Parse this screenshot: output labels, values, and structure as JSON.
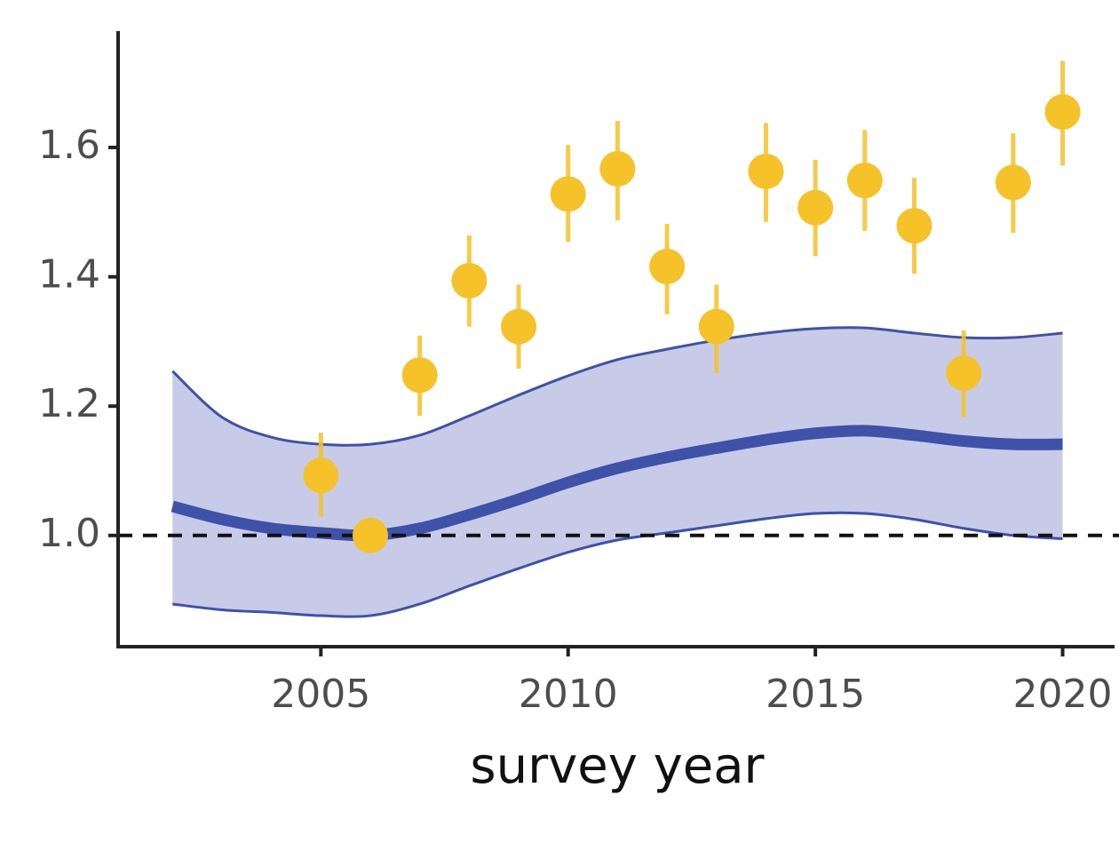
{
  "chart_data": {
    "type": "scatter",
    "x_label": "survey year",
    "xlim": [
      2000.9,
      2021.05
    ],
    "ylim": [
      0.828,
      1.78
    ],
    "xticks": [
      2005,
      2010,
      2015,
      2020
    ],
    "yticks": [
      {
        "value": 1.0,
        "label": "1.0"
      },
      1.2,
      1.4,
      1.6
    ],
    "reference_line": 1,
    "series": [
      {
        "color": "#f5c22a",
        "x": [
          2005,
          2006,
          2007,
          2008,
          2009,
          2010,
          2011,
          2012,
          2013,
          2014,
          2015,
          2016,
          2017,
          2018,
          2019,
          2020
        ],
        "values": [
          1.093,
          1.0,
          1.248,
          1.394,
          1.323,
          1.528,
          1.567,
          1.416,
          1.323,
          1.563,
          1.507,
          1.549,
          1.479,
          1.251,
          1.546,
          1.655
        ],
        "lower": [
          1.029,
          0.99,
          1.185,
          1.323,
          1.258,
          1.454,
          1.487,
          1.342,
          1.251,
          1.485,
          1.432,
          1.471,
          1.405,
          1.183,
          1.468,
          1.572
        ],
        "upper": [
          1.159,
          1.01,
          1.309,
          1.464,
          1.388,
          1.604,
          1.641,
          1.482,
          1.388,
          1.638,
          1.581,
          1.627,
          1.553,
          1.317,
          1.622,
          1.734
        ]
      }
    ],
    "trend": {
      "color": "#3f51a8",
      "band_color": "#c8cbe8",
      "x": [
        2002,
        2003,
        2004,
        2005,
        2006,
        2007,
        2008,
        2009,
        2010,
        2011,
        2012,
        2013,
        2014,
        2015,
        2016,
        2017,
        2018,
        2019,
        2020
      ],
      "values": [
        1.045,
        1.025,
        1.011,
        1.004,
        1.0,
        1.011,
        1.032,
        1.056,
        1.082,
        1.104,
        1.121,
        1.135,
        1.148,
        1.158,
        1.162,
        1.155,
        1.146,
        1.141,
        1.141
      ],
      "upper": [
        1.254,
        1.183,
        1.152,
        1.141,
        1.141,
        1.155,
        1.185,
        1.217,
        1.247,
        1.272,
        1.288,
        1.302,
        1.313,
        1.32,
        1.321,
        1.313,
        1.306,
        1.306,
        1.313
      ],
      "lower": [
        0.894,
        0.885,
        0.881,
        0.876,
        0.876,
        0.894,
        0.922,
        0.949,
        0.974,
        0.993,
        1.004,
        1.015,
        1.026,
        1.034,
        1.034,
        1.025,
        1.011,
        1.0,
        0.995
      ]
    }
  }
}
